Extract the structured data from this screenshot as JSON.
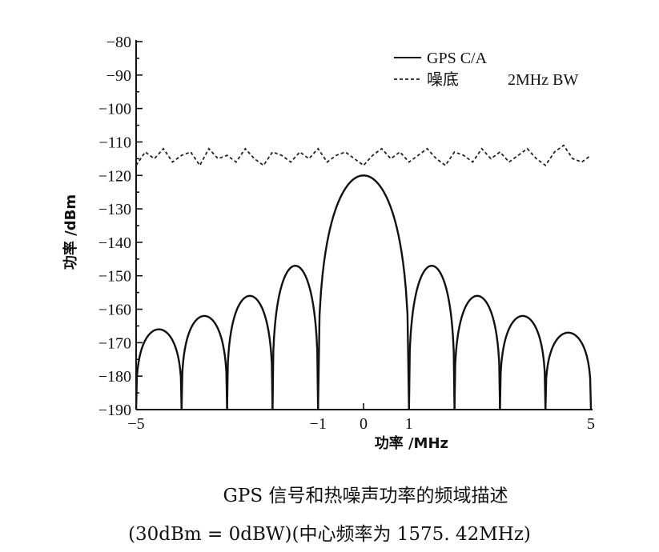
{
  "chart_data": {
    "type": "line",
    "xlabel": "功率 /MHz",
    "ylabel": "功率 /dBm",
    "xlim": [
      -5,
      5
    ],
    "ylim": [
      -190,
      -80
    ],
    "x_ticks": [
      -5,
      -1,
      0,
      1,
      5
    ],
    "x_tick_labels": [
      "−5",
      "−1",
      "0",
      "1",
      "5"
    ],
    "y_ticks": [
      -80,
      -90,
      -100,
      -110,
      -120,
      -130,
      -140,
      -150,
      -160,
      -170,
      -180,
      -190
    ],
    "y_tick_labels": [
      "−80",
      "−90",
      "−100",
      "−110",
      "−120",
      "−130",
      "−140",
      "−150",
      "−160",
      "−170",
      "−180",
      "−190"
    ],
    "legend": {
      "placement": "top-right",
      "entries": [
        {
          "label": "GPS C/A",
          "style": "solid"
        },
        {
          "label": "噪底",
          "style": "dashed"
        }
      ],
      "note": "2MHz BW"
    },
    "series": [
      {
        "name": "GPS C/A",
        "style": "solid",
        "main_lobe": {
          "x": [
            -1,
            1
          ],
          "peak": -120
        },
        "side_lobes": [
          {
            "x": [
              -5,
              -4
            ],
            "peak": -166
          },
          {
            "x": [
              -4,
              -3
            ],
            "peak": -162
          },
          {
            "x": [
              -3,
              -2
            ],
            "peak": -156
          },
          {
            "x": [
              -2,
              -1
            ],
            "peak": -147
          },
          {
            "x": [
              1,
              2
            ],
            "peak": -147
          },
          {
            "x": [
              2,
              3
            ],
            "peak": -156
          },
          {
            "x": [
              3,
              4
            ],
            "peak": -162
          },
          {
            "x": [
              4,
              5
            ],
            "peak": -167
          }
        ]
      },
      {
        "name": "噪底",
        "style": "dashed",
        "level": -114.5,
        "x": [
          -5.0,
          -4.8,
          -4.6,
          -4.4,
          -4.2,
          -4.0,
          -3.8,
          -3.6,
          -3.4,
          -3.2,
          -3.0,
          -2.8,
          -2.6,
          -2.4,
          -2.2,
          -2.0,
          -1.8,
          -1.6,
          -1.4,
          -1.2,
          -1.0,
          -0.8,
          -0.6,
          -0.4,
          -0.2,
          0.0,
          0.2,
          0.4,
          0.6,
          0.8,
          1.0,
          1.2,
          1.4,
          1.6,
          1.8,
          2.0,
          2.2,
          2.4,
          2.6,
          2.8,
          3.0,
          3.2,
          3.4,
          3.6,
          3.8,
          4.0,
          4.2,
          4.4,
          4.6,
          4.8,
          5.0
        ],
        "y": [
          -117,
          -113,
          -115,
          -112,
          -116,
          -114,
          -113,
          -117,
          -112,
          -115,
          -114,
          -116,
          -112,
          -115,
          -117,
          -113,
          -114,
          -116,
          -113,
          -115,
          -112,
          -116,
          -114,
          -113,
          -115,
          -117,
          -114,
          -112,
          -115,
          -113,
          -116,
          -114,
          -112,
          -115,
          -117,
          -113,
          -114,
          -116,
          -112,
          -115,
          -113,
          -116,
          -114,
          -112,
          -115,
          -117,
          -113,
          -111,
          -115,
          -116,
          -114
        ]
      }
    ]
  },
  "caption": {
    "line1": "GPS 信号和热噪声功率的频域描述",
    "line2": "(30dBm = 0dBW)(中心频率为 1575. 42MHz)"
  }
}
